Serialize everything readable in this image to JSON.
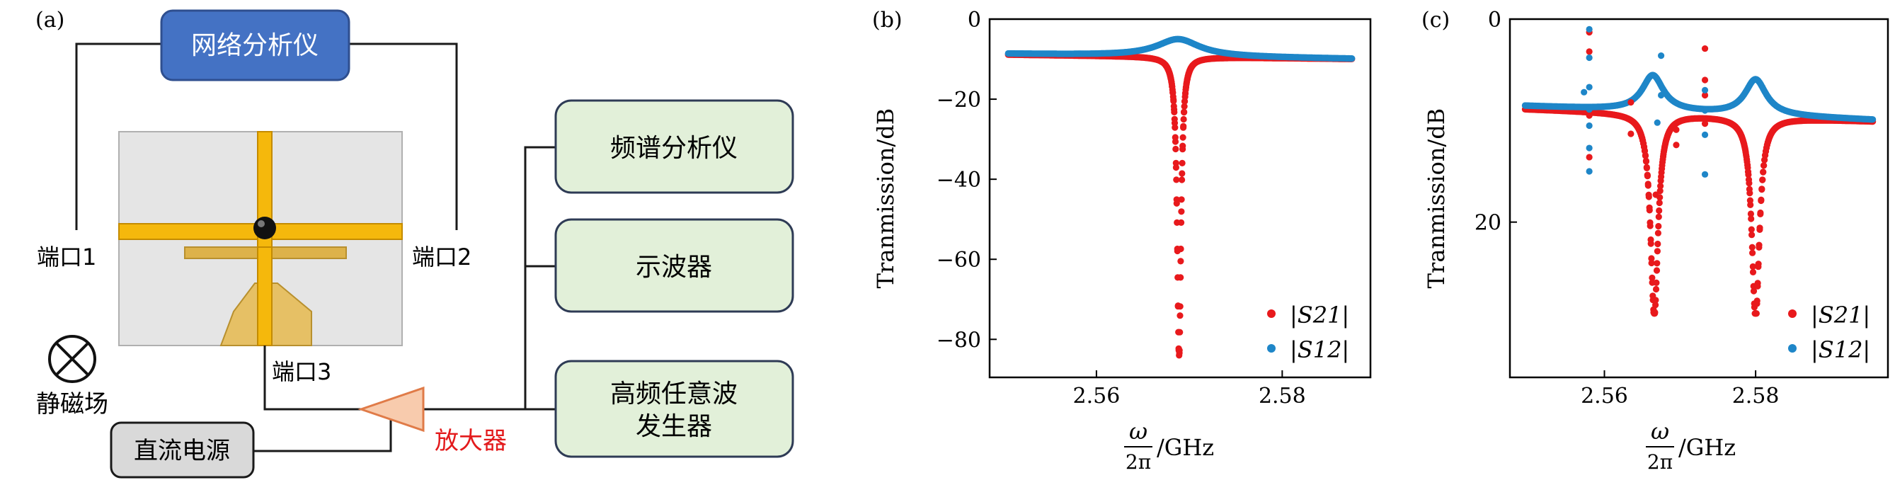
{
  "panel_a": {
    "label": "(a)",
    "network_analyzer": "网络分析仪",
    "spectrum_analyzer": "频谱分析仪",
    "oscilloscope": "示波器",
    "awg_line1": "高频任意波",
    "awg_line2": "发生器",
    "dc_source": "直流电源",
    "amplifier": "放大器",
    "port1": "端口1",
    "port2": "端口2",
    "port3": "端口3",
    "static_field": "静磁场",
    "colors": {
      "network_box": "#4472c4",
      "instrument_box": "#e2f0d9",
      "dc_box": "#d9d9d9",
      "amplifier": "#f8cbad",
      "amplifier_text": "#e31a1c",
      "stripline": "#f5b80c",
      "substrate": "#e5e5e5"
    }
  },
  "chart_data": [
    {
      "panel": "(b)",
      "type": "scatter",
      "xlabel_num": "ω",
      "xlabel_den": "2π",
      "xlabel_unit": "/GHz",
      "ylabel": "Tranmission/dB",
      "xlim": [
        2.5485,
        2.5895
      ],
      "ylim": [
        -89.5,
        0
      ],
      "xticks": [
        2.56,
        2.58
      ],
      "xticklabels": [
        "2.56",
        "2.58"
      ],
      "yticks": [
        0,
        -20,
        -40,
        -60,
        -80
      ],
      "yticklabels": [
        "0",
        "−20",
        "−40",
        "−60",
        "−80"
      ],
      "legend": [
        "|S21|",
        "|S12|"
      ],
      "series": [
        {
          "name": "|S21|",
          "color": "#e8191c",
          "model": "lorentz_dip",
          "baseline": -8.8,
          "slope": -1.2,
          "center": 2.5689,
          "depth": 75,
          "width": 0.00025,
          "min_value": -84
        },
        {
          "name": "|S12|",
          "color": "#1e86c8",
          "model": "lorentz_peak",
          "baseline": -8.6,
          "slope": -1.4,
          "center": 2.5688,
          "height": 4.3,
          "width": 0.0028
        }
      ]
    },
    {
      "panel": "(c)",
      "type": "scatter",
      "xlabel_num": "ω",
      "xlabel_den": "2π",
      "xlabel_unit": "/GHz",
      "ylabel": "Tranmission/dB",
      "xlim": [
        2.5475,
        2.5975
      ],
      "ylim": [
        35.3,
        0
      ],
      "xticks": [
        2.56,
        2.58
      ],
      "xticklabels": [
        "2.56",
        "2.58"
      ],
      "yticks": [
        0,
        20
      ],
      "yticklabels": [
        "0",
        "20"
      ],
      "legend": [
        "|S21|",
        "|S12|"
      ],
      "series": [
        {
          "name": "|S21|",
          "color": "#e8191c",
          "model": "double_dip",
          "baseline": 8.8,
          "slope": 1.3,
          "centers": [
            2.5666,
            2.58
          ],
          "depth": 20,
          "width": 0.0006,
          "max_value": 29
        },
        {
          "name": "|S12|",
          "color": "#1e86c8",
          "model": "double_peak",
          "baseline": 8.5,
          "slope": 1.5,
          "centers": [
            2.5664,
            2.58
          ],
          "height": 3.5,
          "width": 0.0017
        }
      ],
      "outliers": {
        "x": [
          2.558,
          2.5573
        ],
        "blue": [
          [
            2.558,
            1.0
          ],
          [
            2.558,
            3.8
          ],
          [
            2.558,
            6.7
          ],
          [
            2.558,
            8.9
          ],
          [
            2.558,
            10.5
          ],
          [
            2.558,
            12.7
          ],
          [
            2.558,
            15.0
          ],
          [
            2.5573,
            7.2
          ],
          [
            2.5675,
            7.5
          ],
          [
            2.5675,
            3.6
          ],
          [
            2.567,
            10.2
          ],
          [
            2.5733,
            7.0
          ],
          [
            2.5733,
            9.0
          ],
          [
            2.5733,
            11.4
          ],
          [
            2.5733,
            15.3
          ]
        ],
        "red": [
          [
            2.558,
            1.3
          ],
          [
            2.558,
            3.2
          ],
          [
            2.558,
            9.5
          ],
          [
            2.558,
            13.6
          ],
          [
            2.5733,
            2.9
          ],
          [
            2.5733,
            6.0
          ],
          [
            2.5733,
            7.5
          ],
          [
            2.5733,
            10.3
          ],
          [
            2.5635,
            8.2
          ],
          [
            2.5635,
            11.3
          ],
          [
            2.5695,
            10.9
          ],
          [
            2.5695,
            12.4
          ],
          [
            2.5668,
            17.3
          ]
        ]
      }
    }
  ]
}
